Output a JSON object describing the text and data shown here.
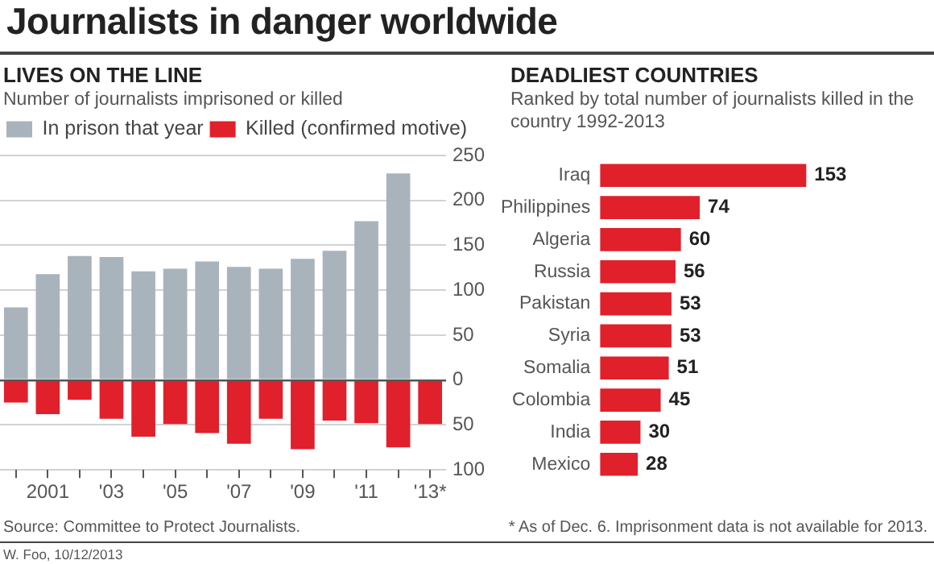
{
  "chart_data": [
    {
      "type": "bar",
      "title": "LIVES ON THE LINE",
      "subtitle": "Number of journalists imprisoned or killed",
      "categories": [
        null,
        "2001",
        null,
        "'03",
        null,
        "'05",
        null,
        "'07",
        null,
        "'09",
        null,
        "'11",
        null,
        "'13*"
      ],
      "series": [
        {
          "name": "In prison that year",
          "color": "#a9b3bb",
          "values": [
            81,
            118,
            138,
            137,
            121,
            124,
            132,
            126,
            124,
            135,
            144,
            177,
            230,
            null
          ]
        },
        {
          "name": "Killed (confirmed motive)",
          "color": "#e0202a",
          "values": [
            -25,
            -38,
            -22,
            -43,
            -63,
            -49,
            -59,
            -71,
            -43,
            -77,
            -45,
            -48,
            -75,
            -49
          ]
        }
      ],
      "stacked": true,
      "ylim": [
        -100,
        250
      ],
      "yticks": [
        {
          "value": -100,
          "label": "100"
        },
        {
          "value": -50,
          "label": "50"
        },
        0,
        50,
        100,
        150,
        200,
        250
      ],
      "grid": "y",
      "legend": "top left",
      "annotations": [
        "Journalists in danger worldwide",
        "Source: Committee to Protect Journalists.",
        "* As of Dec. 6. Imprisonment data is not available for 2013.",
        "W. Foo, 10/12/2013"
      ]
    },
    {
      "type": "bar",
      "orientation": "horizontal",
      "title": "DEADLIEST COUNTRIES",
      "subtitle": "Ranked by total number of journalists killed in the country 1992-2013",
      "categories": [
        "Iraq",
        "Philippines",
        "Algeria",
        "Russia",
        "Pakistan",
        "Syria",
        "Somalia",
        "Colombia",
        "India",
        "Mexico"
      ],
      "values": [
        153,
        74,
        60,
        56,
        53,
        53,
        51,
        45,
        30,
        28
      ],
      "color": "#e0202a",
      "data_labels": true,
      "tick_labels": "y"
    }
  ]
}
